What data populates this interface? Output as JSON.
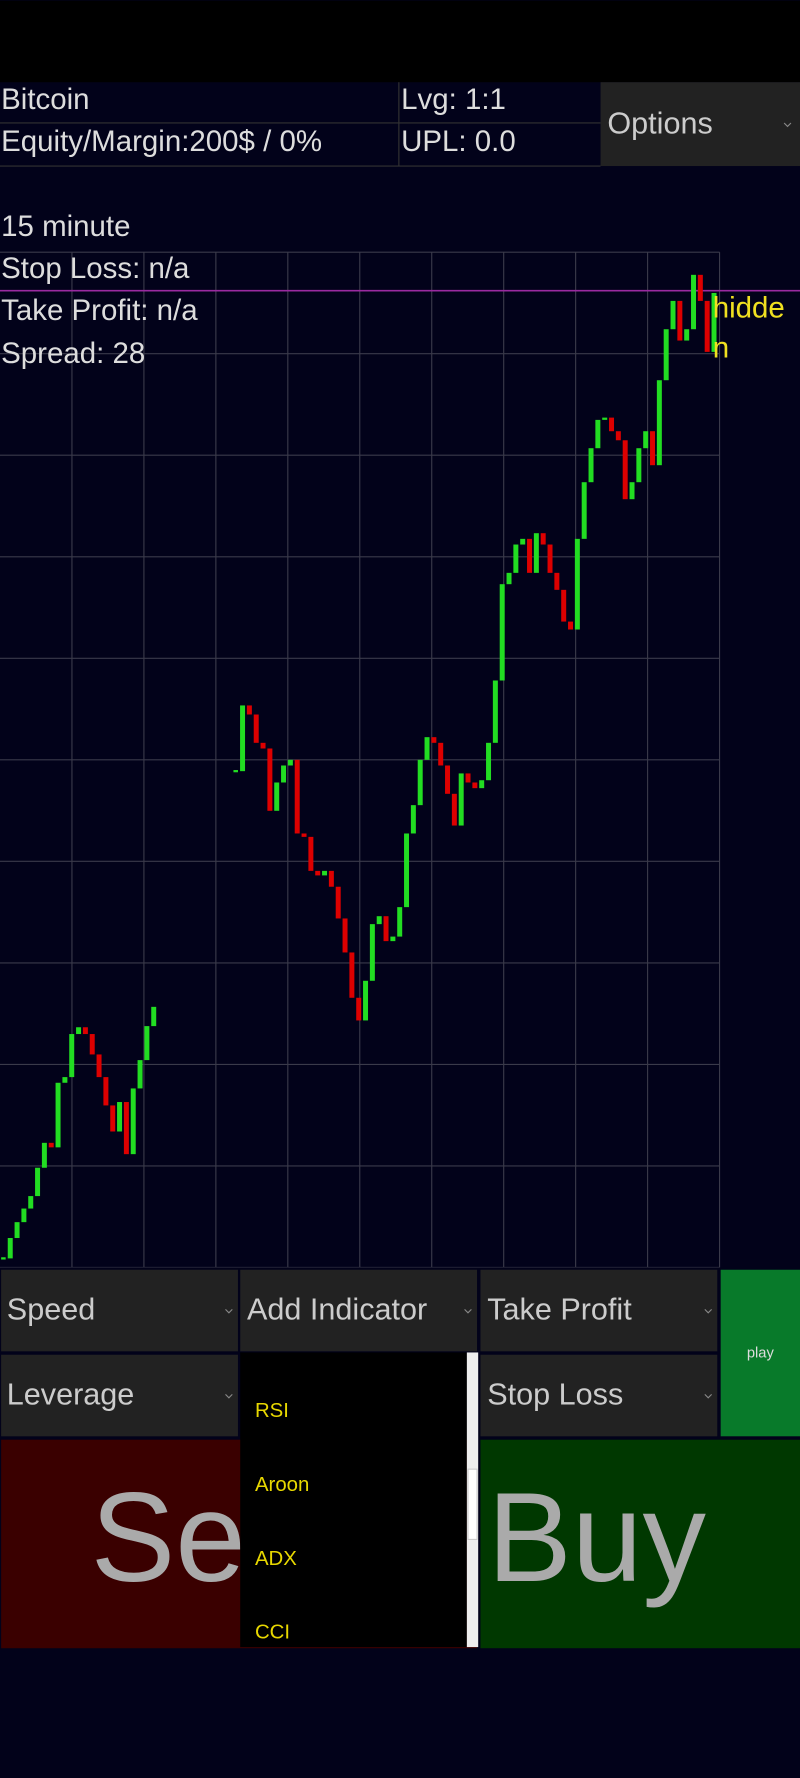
{
  "header": {
    "title": "Bitcoin",
    "equity": "Equity/Margin:200$ / 0%",
    "leverage": "Lvg: 1:1",
    "upl": "UPL: 0.0",
    "options": "Options"
  },
  "info": [
    "15 minute",
    "Stop Loss: n/a",
    "Take Profit: n/a",
    "Spread: 28"
  ],
  "price_tag": [
    "hidde",
    "n"
  ],
  "chart_data": {
    "type": "candlestick",
    "values": [
      8,
      26,
      40,
      52,
      63,
      88,
      110,
      106,
      163,
      168,
      206,
      212,
      206,
      188,
      168,
      143,
      120,
      146,
      100,
      158,
      183,
      213,
      230,
      null,
      null,
      null,
      null,
      null,
      null,
      null,
      null,
      null,
      null,
      null,
      438,
      496,
      488,
      463,
      458,
      403,
      428,
      443,
      448,
      383,
      380,
      350,
      346,
      350,
      336,
      308,
      278,
      238,
      218,
      253,
      303,
      310,
      288,
      292,
      318,
      383,
      408,
      448,
      468,
      463,
      443,
      418,
      390,
      436,
      428,
      423,
      430,
      463,
      518,
      603,
      613,
      638,
      643,
      613,
      648,
      638,
      613,
      598,
      570,
      563,
      643,
      693,
      723,
      748,
      750,
      738,
      730,
      678,
      693,
      723,
      738,
      708,
      783,
      828,
      853,
      818,
      828,
      876,
      853,
      808,
      860
    ],
    "ylim": [
      0,
      900
    ],
    "grid": true,
    "up_color": "#22dd22",
    "down_color": "#dd0000"
  },
  "controls": {
    "speed": "Speed",
    "indicator": "Add Indicator",
    "take_profit": "Take Profit",
    "leverage": "Leverage",
    "stop_loss": "Stop Loss",
    "play": "play",
    "sell": "Sell",
    "buy": "Buy"
  },
  "indicators": [
    "RSI",
    "Aroon",
    "ADX",
    "CCI"
  ]
}
